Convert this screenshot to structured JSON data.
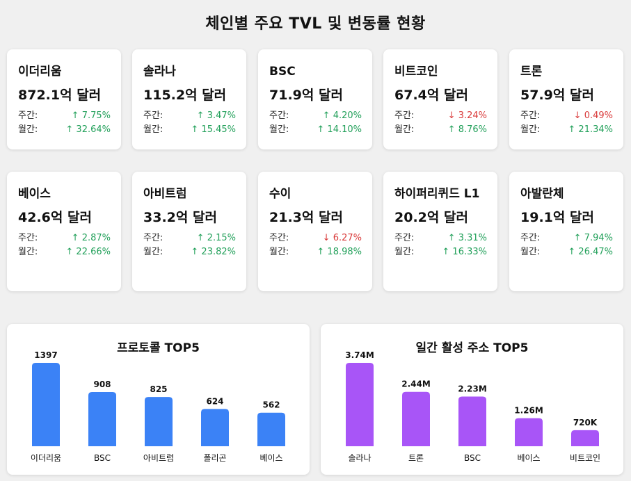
{
  "title": "체인별 주요 TVL 및 변동률 현황",
  "labels": {
    "weekly": "주간:",
    "monthly": "월간:"
  },
  "colors": {
    "up": "#22a05a",
    "down": "#d93a3a",
    "protocol_bar": "#3b82f6",
    "address_bar": "#a855f7"
  },
  "chains": [
    {
      "name": "이더리움",
      "tvl": "872.1억 달러",
      "weekly": "↑ 7.75%",
      "weekly_dir": "up",
      "monthly": "↑ 32.64%",
      "monthly_dir": "up"
    },
    {
      "name": "솔라나",
      "tvl": "115.2억 달러",
      "weekly": "↑ 3.47%",
      "weekly_dir": "up",
      "monthly": "↑ 15.45%",
      "monthly_dir": "up"
    },
    {
      "name": "BSC",
      "tvl": "71.9억 달러",
      "weekly": "↑ 4.20%",
      "weekly_dir": "up",
      "monthly": "↑ 14.10%",
      "monthly_dir": "up"
    },
    {
      "name": "비트코인",
      "tvl": "67.4억 달러",
      "weekly": "↓ 3.24%",
      "weekly_dir": "down",
      "monthly": "↑ 8.76%",
      "monthly_dir": "up"
    },
    {
      "name": "트론",
      "tvl": "57.9억 달러",
      "weekly": "↓ 0.49%",
      "weekly_dir": "down",
      "monthly": "↑ 21.34%",
      "monthly_dir": "up"
    },
    {
      "name": "베이스",
      "tvl": "42.6억 달러",
      "weekly": "↑ 2.87%",
      "weekly_dir": "up",
      "monthly": "↑ 22.66%",
      "monthly_dir": "up"
    },
    {
      "name": "아비트럼",
      "tvl": "33.2억 달러",
      "weekly": "↑ 2.15%",
      "weekly_dir": "up",
      "monthly": "↑ 23.82%",
      "monthly_dir": "up"
    },
    {
      "name": "수이",
      "tvl": "21.3억 달러",
      "weekly": "↓ 6.27%",
      "weekly_dir": "down",
      "monthly": "↑ 18.98%",
      "monthly_dir": "up"
    },
    {
      "name": "하이퍼리퀴드 L1",
      "tvl": "20.2억 달러",
      "weekly": "↑ 3.31%",
      "weekly_dir": "up",
      "monthly": "↑ 16.33%",
      "monthly_dir": "up"
    },
    {
      "name": "아발란체",
      "tvl": "19.1억 달러",
      "weekly": "↑ 7.94%",
      "weekly_dir": "up",
      "monthly": "↑ 26.47%",
      "monthly_dir": "up"
    }
  ],
  "chart_data": [
    {
      "type": "bar",
      "title": "프로토콜 TOP5",
      "categories": [
        "이더리움",
        "BSC",
        "아비트럼",
        "폴리곤",
        "베이스"
      ],
      "values": [
        1397,
        908,
        825,
        624,
        562
      ],
      "value_labels": [
        "1397",
        "908",
        "825",
        "624",
        "562"
      ],
      "color": "#3b82f6"
    },
    {
      "type": "bar",
      "title": "일간 활성 주소 TOP5",
      "categories": [
        "솔라나",
        "트론",
        "BSC",
        "베이스",
        "비트코인"
      ],
      "values": [
        3740000,
        2440000,
        2230000,
        1260000,
        720000
      ],
      "value_labels": [
        "3.74M",
        "2.44M",
        "2.23M",
        "1.26M",
        "720K"
      ],
      "color": "#a855f7"
    }
  ]
}
